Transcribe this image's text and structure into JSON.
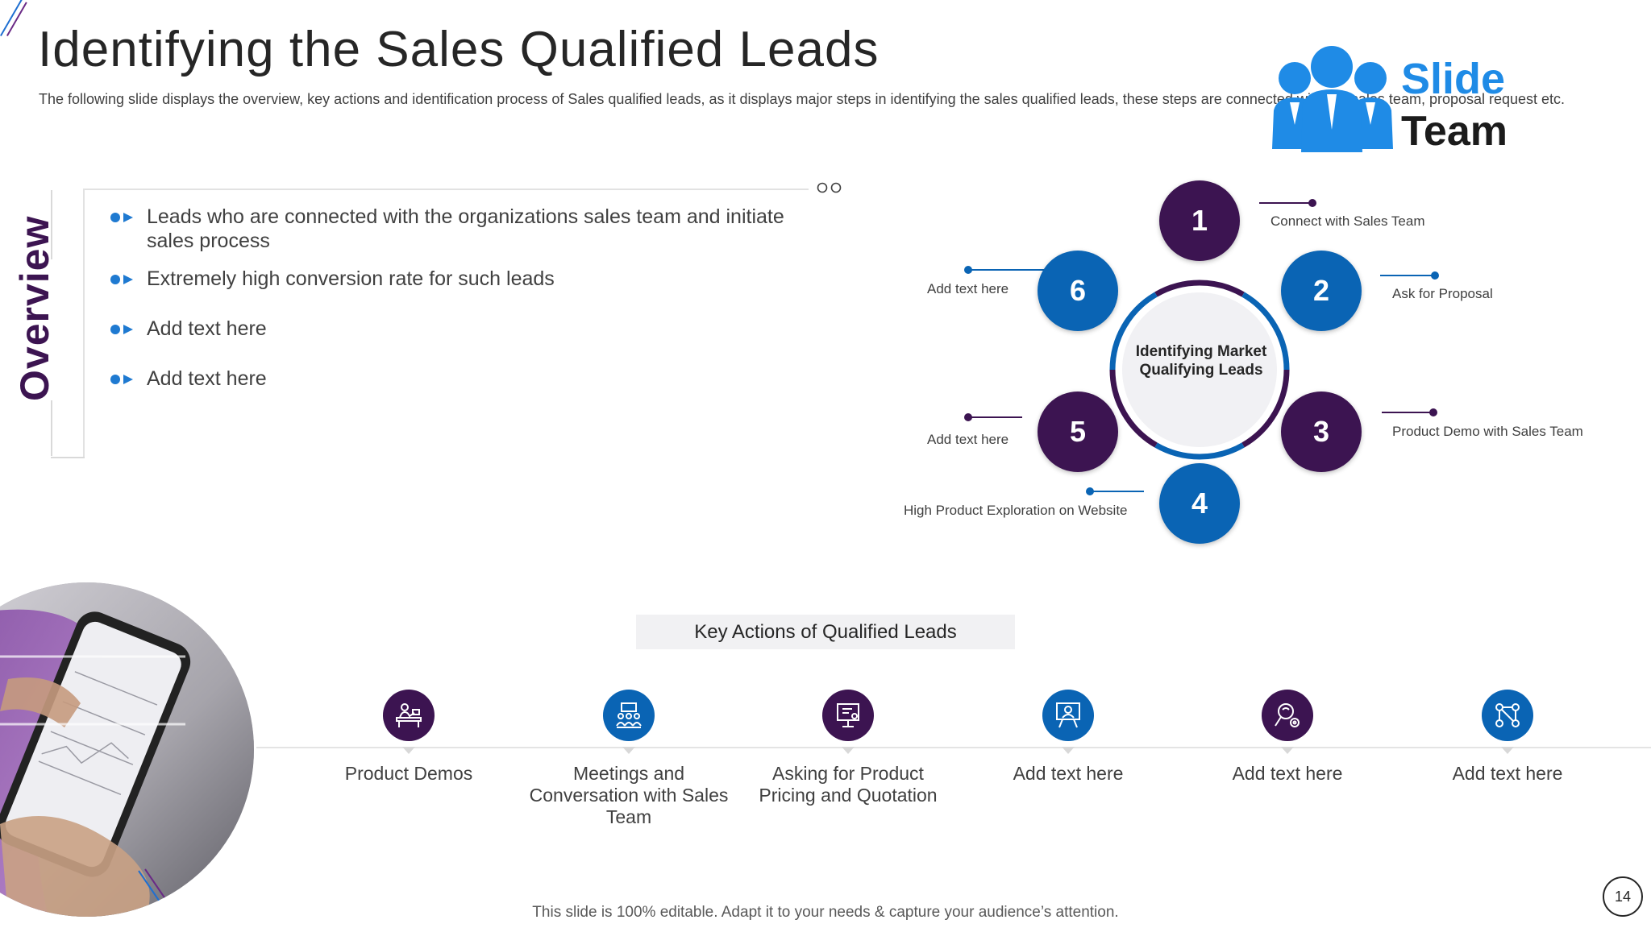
{
  "slide": {
    "title": "Identifying the Sales Qualified Leads",
    "subtitle": "The following slide displays the overview,  key  actions and identification process of Sales qualified leads, as it displays major steps in identifying the sales qualified leads, these steps are connected with the sales team, proposal request etc.",
    "footer": "This slide is 100% editable. Adapt it to your needs & capture your audience’s attention.",
    "page_number": "14"
  },
  "logo": {
    "line1": "Slide",
    "line2": "Team",
    "accent_color": "#1f8be6"
  },
  "overview": {
    "label": "Overview",
    "bullets": [
      "Leads who are connected with the organizations  sales team and initiate sales process",
      "Extremely  high  conversion rate for such leads",
      "Add text here",
      "Add text here"
    ]
  },
  "cycle": {
    "center": "Identifying  Market Qualifying  Leads",
    "steps": [
      {
        "number": "1",
        "label": "Connect  with Sales Team",
        "color": "#3c1451"
      },
      {
        "number": "2",
        "label": "Ask for Proposal",
        "color": "#0a64b4"
      },
      {
        "number": "3",
        "label": "Product Demo  with Sales Team",
        "color": "#3c1451"
      },
      {
        "number": "4",
        "label": "High  Product Exploration  on Website",
        "color": "#0a64b4"
      },
      {
        "number": "5",
        "label": "Add text here",
        "color": "#3c1451"
      },
      {
        "number": "6",
        "label": "Add text here",
        "color": "#0a64b4"
      }
    ]
  },
  "key_actions": {
    "title": "Key Actions of Qualified Leads",
    "items": [
      {
        "label": "Product Demos",
        "icon": "presentation-desk-icon",
        "color": "#3c1451"
      },
      {
        "label": "Meetings and Conversation with Sales Team",
        "icon": "meeting-icon",
        "color": "#0a64b4"
      },
      {
        "label": "Asking for Product Pricing and Quotation",
        "icon": "pricing-board-icon",
        "color": "#3c1451"
      },
      {
        "label": "Add text here",
        "icon": "screen-presenter-icon",
        "color": "#0a64b4"
      },
      {
        "label": "Add text here",
        "icon": "search-gear-icon",
        "color": "#3c1451"
      },
      {
        "label": "Add text here",
        "icon": "network-people-icon",
        "color": "#0a64b4"
      }
    ]
  },
  "photo": {
    "icon": "hand-holding-phone-photo"
  }
}
